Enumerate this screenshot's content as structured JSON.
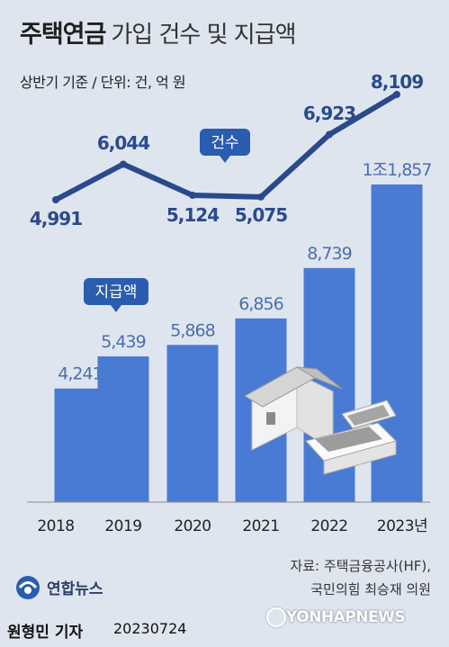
{
  "header": {
    "title_bold": "주택연금",
    "title_rest": "가입 건수 및 지급액",
    "subtitle": "상반기 기준 / 단위: 건, 억 원"
  },
  "chart_data": [
    {
      "type": "line",
      "name": "건수",
      "x": [
        "2018",
        "2019",
        "2020",
        "2021",
        "2022",
        "2023년"
      ],
      "values": [
        4991,
        6044,
        5124,
        5075,
        6923,
        8109
      ],
      "labels": [
        "4,991",
        "6,044",
        "5,124",
        "5,075",
        "6,923",
        "8,109"
      ],
      "color": "#2a4a8c"
    },
    {
      "type": "bar",
      "name": "지급액",
      "categories": [
        "2018",
        "2019",
        "2020",
        "2021",
        "2022",
        "2023년"
      ],
      "values": [
        4241,
        5439,
        5868,
        6856,
        8739,
        11857
      ],
      "labels": [
        "4,241",
        "5,439",
        "5,868",
        "6,856",
        "8,739",
        "1조1,857"
      ],
      "color": "#4a7bd4"
    }
  ],
  "callouts": {
    "line_tag": "건수",
    "bar_tag": "지급액"
  },
  "footer": {
    "source_line1": "자료: 주택금융공사(HF),",
    "source_line2": "국민의힘 최승재 의원",
    "logo_text": "연합뉴스",
    "reporter": "원형민 기자",
    "date": "20230724",
    "watermark": "YONHAPNEWS"
  },
  "colors": {
    "bar": "#4a7bd4",
    "line": "#2a4a8c",
    "tag": "#2a5db0",
    "background": "#dfe5ef",
    "bar_label": "#4a6fae"
  }
}
